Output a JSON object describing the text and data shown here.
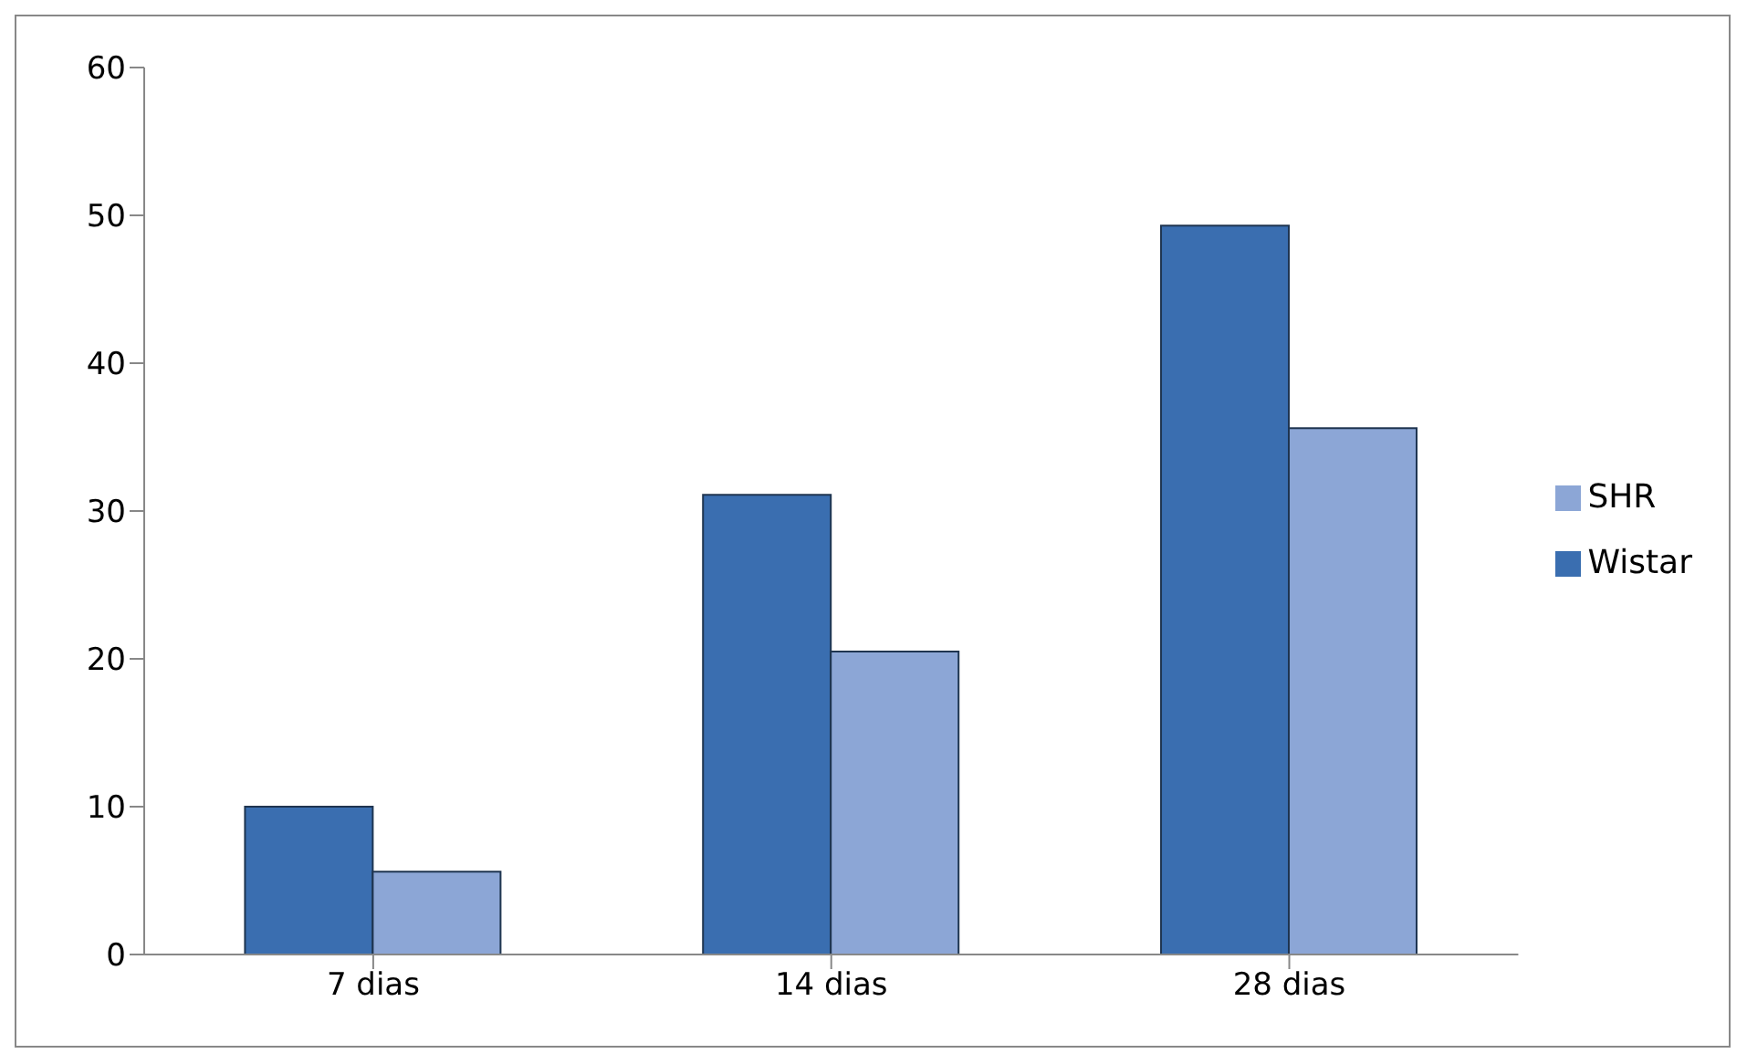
{
  "chart_data": {
    "type": "bar",
    "categories": [
      "7 dias",
      "14 dias",
      "28 dias"
    ],
    "series": [
      {
        "name": "Wistar",
        "color": "#3a6eb0",
        "values": [
          10.0,
          31.1,
          49.3
        ]
      },
      {
        "name": "SHR",
        "color": "#8ca6d6",
        "values": [
          5.6,
          20.5,
          35.6
        ]
      }
    ],
    "ylim": [
      0,
      60
    ],
    "yticks": [
      0,
      10,
      20,
      30,
      40,
      50,
      60
    ],
    "grid": false,
    "legend": "right"
  }
}
